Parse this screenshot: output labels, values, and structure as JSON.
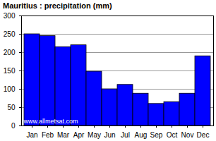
{
  "chart_data": {
    "type": "bar",
    "title": "Mauritius : precipitation (mm)",
    "categories": [
      "Jan",
      "Feb",
      "Mar",
      "Apr",
      "May",
      "Jun",
      "Jul",
      "Aug",
      "Sep",
      "Oct",
      "Nov",
      "Dec"
    ],
    "values": [
      250,
      245,
      215,
      220,
      148,
      100,
      112,
      88,
      60,
      65,
      88,
      190
    ],
    "color": "#0000ff",
    "ylim": [
      0,
      300
    ],
    "yticks": [
      0,
      50,
      100,
      150,
      200,
      250,
      300
    ],
    "grid": true,
    "annotations": [
      "www.allmetsat.com"
    ]
  }
}
